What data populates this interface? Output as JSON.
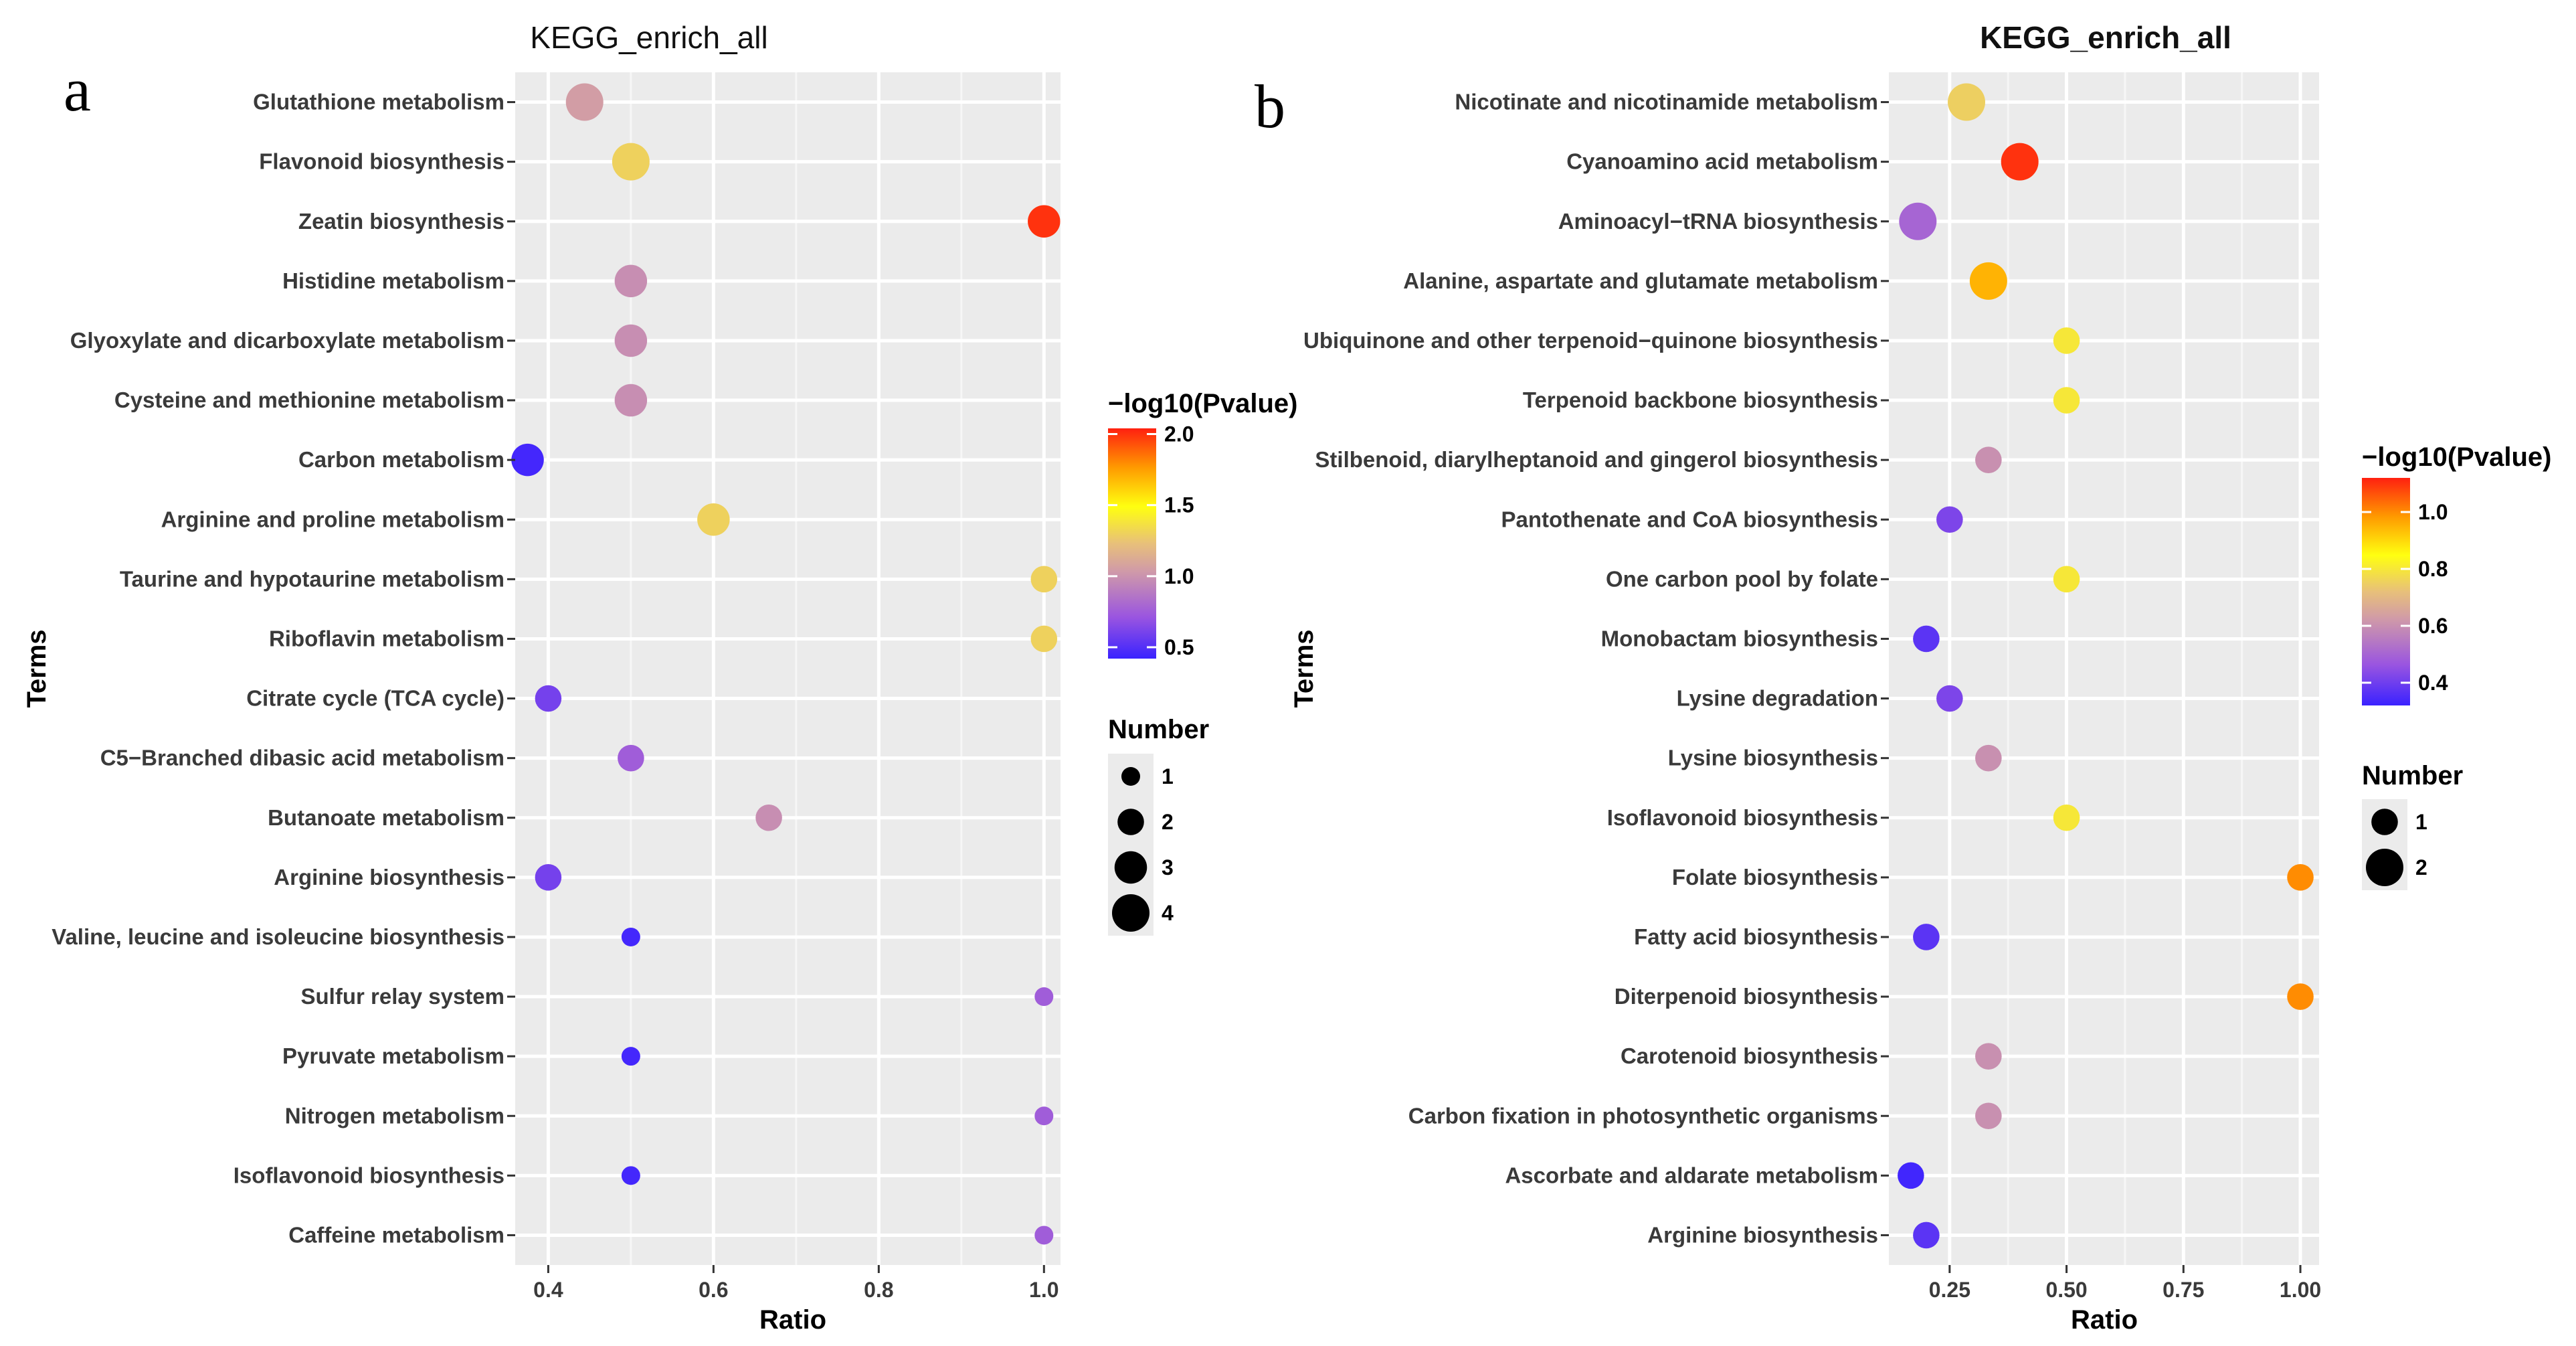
{
  "chart_data": [
    {
      "type": "scatter",
      "panel": "a",
      "title": "KEGG_enrich_all",
      "xlabel": "Ratio",
      "ylabel": "Terms",
      "xlim": [
        0.36,
        1.02
      ],
      "xticks": [
        0.4,
        0.6,
        0.8,
        1.0
      ],
      "xtick_labels": [
        "0.4",
        "0.6",
        "0.8",
        "1.0"
      ],
      "color_legend": {
        "title": "−log10(Pvalue)",
        "min": 0.42,
        "max": 2.04,
        "ticks": [
          0.5,
          1.0,
          1.5,
          2.0
        ],
        "tick_labels": [
          "0.5",
          "1.0",
          "1.5",
          "2.0"
        ]
      },
      "size_legend": {
        "title": "Number",
        "values": [
          1,
          2,
          3,
          4
        ],
        "labels": [
          "1",
          "2",
          "3",
          "4"
        ]
      },
      "terms": [
        "Glutathione metabolism",
        "Flavonoid biosynthesis",
        "Zeatin biosynthesis",
        "Histidine metabolism",
        "Glyoxylate and dicarboxylate metabolism",
        "Cysteine and methionine metabolism",
        "Carbon metabolism",
        "Arginine and proline metabolism",
        "Taurine and hypotaurine metabolism",
        "Riboflavin metabolism",
        "Citrate cycle (TCA cycle)",
        "C5−Branched dibasic acid metabolism",
        "Butanoate metabolism",
        "Arginine biosynthesis",
        "Valine, leucine and isoleucine biosynthesis",
        "Sulfur relay system",
        "Pyruvate metabolism",
        "Nitrogen metabolism",
        "Isoflavonoid biosynthesis",
        "Caffeine metabolism"
      ],
      "points": [
        {
          "ratio": 0.444,
          "p": 1.05,
          "n": 4
        },
        {
          "ratio": 0.5,
          "p": 1.3,
          "n": 4
        },
        {
          "ratio": 1.0,
          "p": 2.0,
          "n": 3
        },
        {
          "ratio": 0.5,
          "p": 0.98,
          "n": 3
        },
        {
          "ratio": 0.5,
          "p": 0.98,
          "n": 3
        },
        {
          "ratio": 0.5,
          "p": 0.98,
          "n": 3
        },
        {
          "ratio": 0.375,
          "p": 0.45,
          "n": 3
        },
        {
          "ratio": 0.6,
          "p": 1.3,
          "n": 3
        },
        {
          "ratio": 1.0,
          "p": 1.3,
          "n": 2
        },
        {
          "ratio": 1.0,
          "p": 1.3,
          "n": 2
        },
        {
          "ratio": 0.4,
          "p": 0.6,
          "n": 2
        },
        {
          "ratio": 0.5,
          "p": 0.75,
          "n": 2
        },
        {
          "ratio": 0.667,
          "p": 0.98,
          "n": 2
        },
        {
          "ratio": 0.4,
          "p": 0.6,
          "n": 2
        },
        {
          "ratio": 0.5,
          "p": 0.45,
          "n": 1
        },
        {
          "ratio": 1.0,
          "p": 0.75,
          "n": 1
        },
        {
          "ratio": 0.5,
          "p": 0.45,
          "n": 1
        },
        {
          "ratio": 1.0,
          "p": 0.75,
          "n": 1
        },
        {
          "ratio": 0.5,
          "p": 0.45,
          "n": 1
        },
        {
          "ratio": 1.0,
          "p": 0.75,
          "n": 1
        }
      ]
    },
    {
      "type": "scatter",
      "panel": "b",
      "title": "KEGG_enrich_all",
      "xlabel": "Ratio",
      "ylabel": "Terms",
      "xlim": [
        0.12,
        1.04
      ],
      "xticks": [
        0.25,
        0.5,
        0.75,
        1.0
      ],
      "xtick_labels": [
        "0.25",
        "0.50",
        "0.75",
        "1.00"
      ],
      "color_legend": {
        "title": "−log10(Pvalue)",
        "min": 0.32,
        "max": 1.12,
        "ticks": [
          0.4,
          0.6,
          0.8,
          1.0
        ],
        "tick_labels": [
          "0.4",
          "0.6",
          "0.8",
          "1.0"
        ]
      },
      "size_legend": {
        "title": "Number",
        "values": [
          1,
          2
        ],
        "labels": [
          "1",
          "2"
        ]
      },
      "terms": [
        "Nicotinate and nicotinamide metabolism",
        "Cyanoamino acid metabolism",
        "Aminoacyl−tRNA biosynthesis",
        "Alanine, aspartate and glutamate metabolism",
        "Ubiquinone and other terpenoid−quinone biosynthesis",
        "Terpenoid backbone biosynthesis",
        "Stilbenoid, diarylheptanoid and gingerol biosynthesis",
        "Pantothenate and CoA biosynthesis",
        "One carbon pool by folate",
        "Monobactam biosynthesis",
        "Lysine degradation",
        "Lysine biosynthesis",
        "Isoflavonoid biosynthesis",
        "Folate biosynthesis",
        "Fatty acid biosynthesis",
        "Diterpenoid biosynthesis",
        "Carotenoid biosynthesis",
        "Carbon fixation in photosynthetic organisms",
        "Ascorbate and aldarate metabolism",
        "Arginine biosynthesis"
      ],
      "points": [
        {
          "ratio": 0.286,
          "p": 0.75,
          "n": 2
        },
        {
          "ratio": 0.4,
          "p": 1.1,
          "n": 2
        },
        {
          "ratio": 0.182,
          "p": 0.5,
          "n": 2
        },
        {
          "ratio": 0.333,
          "p": 0.95,
          "n": 2
        },
        {
          "ratio": 0.5,
          "p": 0.8,
          "n": 1
        },
        {
          "ratio": 0.5,
          "p": 0.8,
          "n": 1
        },
        {
          "ratio": 0.333,
          "p": 0.6,
          "n": 1
        },
        {
          "ratio": 0.25,
          "p": 0.42,
          "n": 1
        },
        {
          "ratio": 0.5,
          "p": 0.8,
          "n": 1
        },
        {
          "ratio": 0.2,
          "p": 0.37,
          "n": 1
        },
        {
          "ratio": 0.25,
          "p": 0.42,
          "n": 1
        },
        {
          "ratio": 0.333,
          "p": 0.6,
          "n": 1
        },
        {
          "ratio": 0.5,
          "p": 0.8,
          "n": 1
        },
        {
          "ratio": 1.0,
          "p": 1.0,
          "n": 1
        },
        {
          "ratio": 0.2,
          "p": 0.37,
          "n": 1
        },
        {
          "ratio": 1.0,
          "p": 1.0,
          "n": 1
        },
        {
          "ratio": 0.333,
          "p": 0.6,
          "n": 1
        },
        {
          "ratio": 0.333,
          "p": 0.6,
          "n": 1
        },
        {
          "ratio": 0.167,
          "p": 0.33,
          "n": 1
        },
        {
          "ratio": 0.2,
          "p": 0.37,
          "n": 1
        }
      ]
    }
  ]
}
